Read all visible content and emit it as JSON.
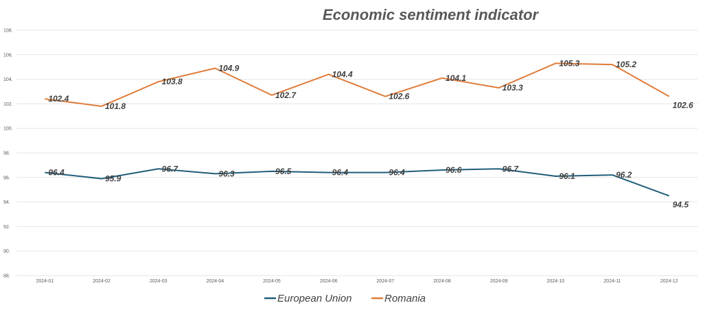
{
  "chart_data": {
    "type": "line",
    "title": "Economic sentiment indicator",
    "xlabel": "",
    "ylabel": "",
    "categories": [
      "2024-01",
      "2024-02",
      "2024-03",
      "2024-04",
      "2024-05",
      "2024-06",
      "2024-07",
      "2024-08",
      "2024-09",
      "2024-10",
      "2024-11",
      "2024-12"
    ],
    "ylim": [
      88,
      108
    ],
    "yticks": [
      "108.",
      "106.",
      "104.",
      "102.",
      "100.",
      "98.",
      "96.",
      "94.",
      "92.",
      "90.",
      "88."
    ],
    "grid": true,
    "legend_position": "bottom",
    "series": [
      {
        "name": "European Union",
        "color": "#1f5c7a",
        "values": [
          96.4,
          95.9,
          96.7,
          96.3,
          96.5,
          96.4,
          96.4,
          96.6,
          96.7,
          96.1,
          96.2,
          94.5
        ],
        "labels": [
          "96.4",
          "95.9",
          "96.7",
          "96.3",
          "96.5",
          "96.4",
          "96.4",
          "96.6",
          "96.7",
          "96.1",
          "96.2",
          "94.5"
        ]
      },
      {
        "name": "Romania",
        "color": "#e07b39",
        "values": [
          102.4,
          101.8,
          103.8,
          104.9,
          102.7,
          104.4,
          102.6,
          104.1,
          103.3,
          105.3,
          105.2,
          102.6
        ],
        "labels": [
          "102.4",
          "101.8",
          "103.8",
          "104.9",
          "102.7",
          "104.4",
          "102.6",
          "104.1",
          "103.3",
          "105.3",
          "105.2",
          "102.6"
        ]
      }
    ]
  }
}
